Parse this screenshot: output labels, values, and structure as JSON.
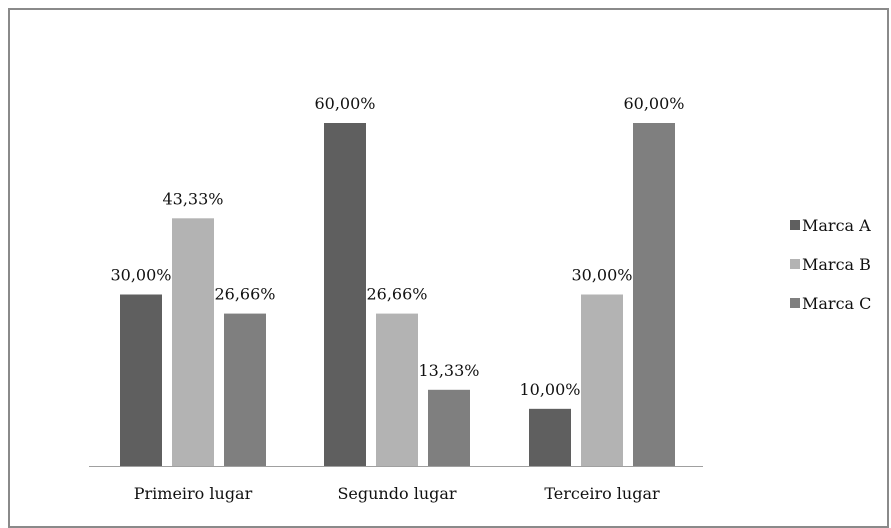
{
  "chart_data": {
    "type": "bar",
    "categories": [
      "Primeiro lugar",
      "Segundo lugar",
      "Terceiro lugar"
    ],
    "series": [
      {
        "name": "Marca A",
        "values": [
          30.0,
          60.0,
          10.0
        ],
        "labels": [
          "30,00%",
          "60,00%",
          "10,00%"
        ],
        "color": "#5f5f5f"
      },
      {
        "name": "Marca B",
        "values": [
          43.33,
          26.66,
          30.0
        ],
        "labels": [
          "43,33%",
          "26,66%",
          "30,00%"
        ],
        "color": "#b3b3b3"
      },
      {
        "name": "Marca C",
        "values": [
          26.66,
          13.33,
          60.0
        ],
        "labels": [
          "26,66%",
          "13,33%",
          "60,00%"
        ],
        "color": "#7f7f7f"
      }
    ],
    "ylim": [
      0,
      60
    ],
    "grid": false,
    "legend_position": "right",
    "title": "",
    "xlabel": "",
    "ylabel": ""
  }
}
